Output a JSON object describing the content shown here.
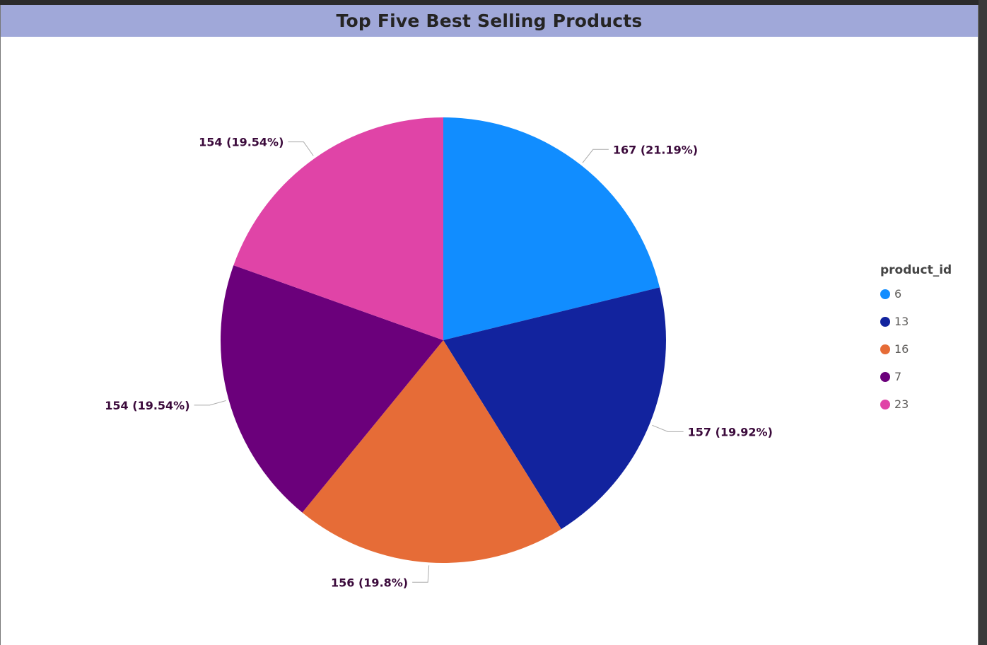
{
  "header": {
    "title": "Top Five Best Selling Products"
  },
  "legend": {
    "title": "product_id",
    "items": [
      {
        "label": "6",
        "color": "#118dff"
      },
      {
        "label": "13",
        "color": "#12239e"
      },
      {
        "label": "16",
        "color": "#e66c37"
      },
      {
        "label": "7",
        "color": "#6b007b"
      },
      {
        "label": "23",
        "color": "#e044a7"
      }
    ]
  },
  "chart_data": {
    "type": "pie",
    "title": "Top Five Best Selling Products",
    "legend_title": "product_id",
    "legend_position": "right",
    "categories": [
      "6",
      "13",
      "16",
      "7",
      "23"
    ],
    "values": [
      167,
      157,
      156,
      154,
      154
    ],
    "labels": [
      "167 (21.19%)",
      "157 (19.92%)",
      "156 (19.8%)",
      "154 (19.54%)",
      "154 (19.54%)"
    ],
    "colors": [
      "#118dff",
      "#12239e",
      "#e66c37",
      "#6b007b",
      "#e044a7"
    ]
  }
}
